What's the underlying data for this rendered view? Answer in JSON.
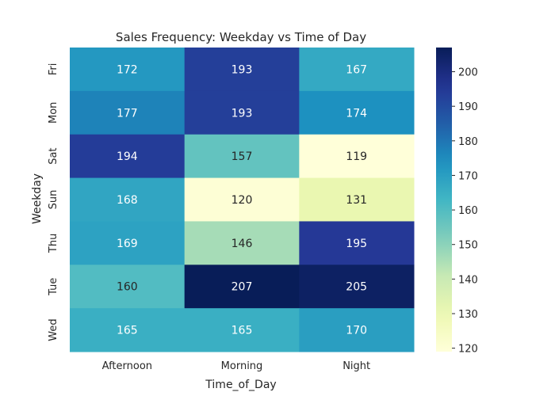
{
  "chart_data": {
    "type": "heatmap",
    "title": "Sales Frequency: Weekday vs Time of Day",
    "xlabel": "Time_of_Day",
    "ylabel": "Weekday",
    "x_categories": [
      "Afternoon",
      "Morning",
      "Night"
    ],
    "y_categories": [
      "Fri",
      "Mon",
      "Sat",
      "Sun",
      "Thu",
      "Tue",
      "Wed"
    ],
    "values": [
      [
        172,
        193,
        167
      ],
      [
        177,
        193,
        174
      ],
      [
        194,
        157,
        119
      ],
      [
        168,
        120,
        131
      ],
      [
        169,
        146,
        195
      ],
      [
        160,
        207,
        205
      ],
      [
        165,
        165,
        170
      ]
    ],
    "colormap": "YlGnBu",
    "color_range": [
      119,
      207
    ],
    "colorbar_ticks": [
      120,
      130,
      140,
      150,
      160,
      170,
      180,
      190,
      200
    ],
    "colorbar_position": "right"
  }
}
